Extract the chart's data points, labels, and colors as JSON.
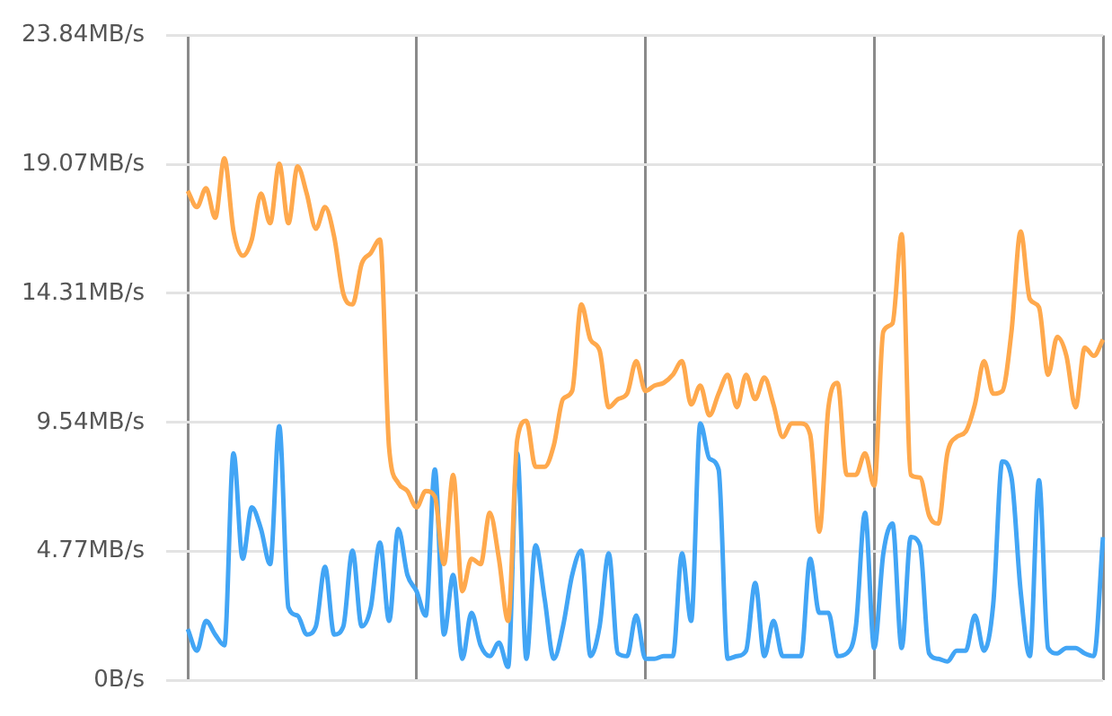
{
  "chart_data": {
    "type": "line",
    "categories": [
      null,
      null,
      null,
      null,
      null,
      null,
      null,
      null,
      null,
      null,
      null,
      null,
      null,
      null,
      null,
      null,
      null,
      null,
      null,
      null,
      null,
      null,
      null,
      null,
      null,
      null,
      null,
      null,
      null,
      null,
      null,
      null,
      null,
      null,
      null,
      null,
      null,
      null,
      null,
      null,
      null,
      null,
      null,
      null,
      null,
      null,
      null,
      null,
      null,
      null,
      null,
      null,
      null,
      null,
      null,
      null,
      null,
      null,
      null,
      null,
      null,
      null,
      null,
      null,
      null,
      null,
      null,
      null,
      null,
      null,
      null,
      null,
      null,
      null,
      null,
      null,
      null,
      null,
      null,
      null,
      null,
      null,
      null,
      null,
      null,
      null,
      null,
      null,
      null,
      null,
      null,
      null,
      null,
      null,
      null,
      null,
      null,
      null,
      null,
      null,
      null
    ],
    "series": [
      {
        "color": "#ffa94d",
        "values": [
          18.1,
          17.5,
          18.2,
          17.1,
          19.3,
          16.6,
          15.7,
          16.3,
          18.0,
          16.9,
          19.1,
          16.9,
          19.0,
          18.0,
          16.7,
          17.5,
          16.4,
          14.3,
          13.9,
          15.4,
          15.8,
          16.3,
          8.6,
          7.3,
          7.0,
          6.4,
          7.0,
          6.8,
          4.3,
          7.6,
          3.3,
          4.5,
          4.3,
          6.2,
          4.5,
          2.2,
          8.9,
          9.6,
          7.9,
          7.9,
          8.7,
          10.4,
          10.7,
          13.9,
          12.6,
          12.2,
          10.1,
          10.4,
          10.6,
          11.8,
          10.7,
          10.9,
          11.0,
          11.3,
          11.8,
          10.2,
          10.9,
          9.8,
          10.6,
          11.3,
          10.1,
          11.3,
          10.4,
          11.2,
          10.2,
          9.0,
          9.5,
          9.5,
          9.1,
          5.5,
          10.1,
          11.0,
          7.6,
          7.6,
          8.4,
          7.2,
          12.9,
          13.2,
          16.5,
          7.6,
          7.5,
          6.1,
          5.8,
          8.4,
          9.0,
          9.2,
          10.2,
          11.8,
          10.6,
          10.7,
          12.9,
          16.6,
          14.1,
          13.8,
          11.3,
          12.7,
          12.0,
          10.1,
          12.3,
          12.0,
          12.6
        ]
      },
      {
        "color": "#42a5f5",
        "values": [
          1.9,
          1.1,
          2.2,
          1.7,
          1.3,
          8.4,
          4.5,
          6.4,
          5.6,
          4.3,
          9.4,
          2.7,
          2.4,
          1.7,
          2.0,
          4.2,
          1.7,
          2.0,
          4.8,
          2.0,
          2.7,
          5.1,
          2.2,
          5.6,
          3.9,
          3.3,
          2.4,
          7.8,
          1.7,
          3.9,
          0.8,
          2.5,
          1.3,
          0.9,
          1.4,
          0.5,
          8.4,
          0.8,
          5.0,
          3.0,
          0.8,
          2.0,
          3.9,
          4.8,
          0.9,
          2.0,
          4.7,
          1.0,
          0.9,
          2.4,
          0.8,
          0.8,
          0.9,
          0.9,
          4.7,
          2.2,
          9.5,
          8.2,
          7.8,
          0.8,
          0.9,
          1.1,
          3.6,
          0.9,
          2.2,
          0.9,
          0.9,
          0.9,
          4.5,
          2.5,
          2.5,
          0.9,
          1.0,
          2.0,
          6.2,
          1.2,
          4.7,
          5.8,
          1.2,
          5.3,
          5.0,
          1.0,
          0.8,
          0.7,
          1.1,
          1.1,
          2.4,
          1.1,
          2.8,
          8.1,
          7.5,
          3.3,
          0.9,
          7.4,
          1.2,
          1.0,
          1.2,
          1.2,
          1.0,
          0.9,
          5.3
        ]
      }
    ],
    "ylim": [
      0,
      23.84
    ],
    "yticks": [
      {
        "value": 0,
        "label": "0B/s"
      },
      {
        "value": 4.77,
        "label": "4.77MB/s"
      },
      {
        "value": 9.54,
        "label": "9.54MB/s"
      },
      {
        "value": 14.31,
        "label": "14.31MB/s"
      },
      {
        "value": 19.07,
        "label": "19.07MB/s"
      },
      {
        "value": 23.84,
        "label": "23.84MB/s"
      }
    ],
    "grid": true,
    "legend": false,
    "marker": "none",
    "line_style": "solid"
  }
}
